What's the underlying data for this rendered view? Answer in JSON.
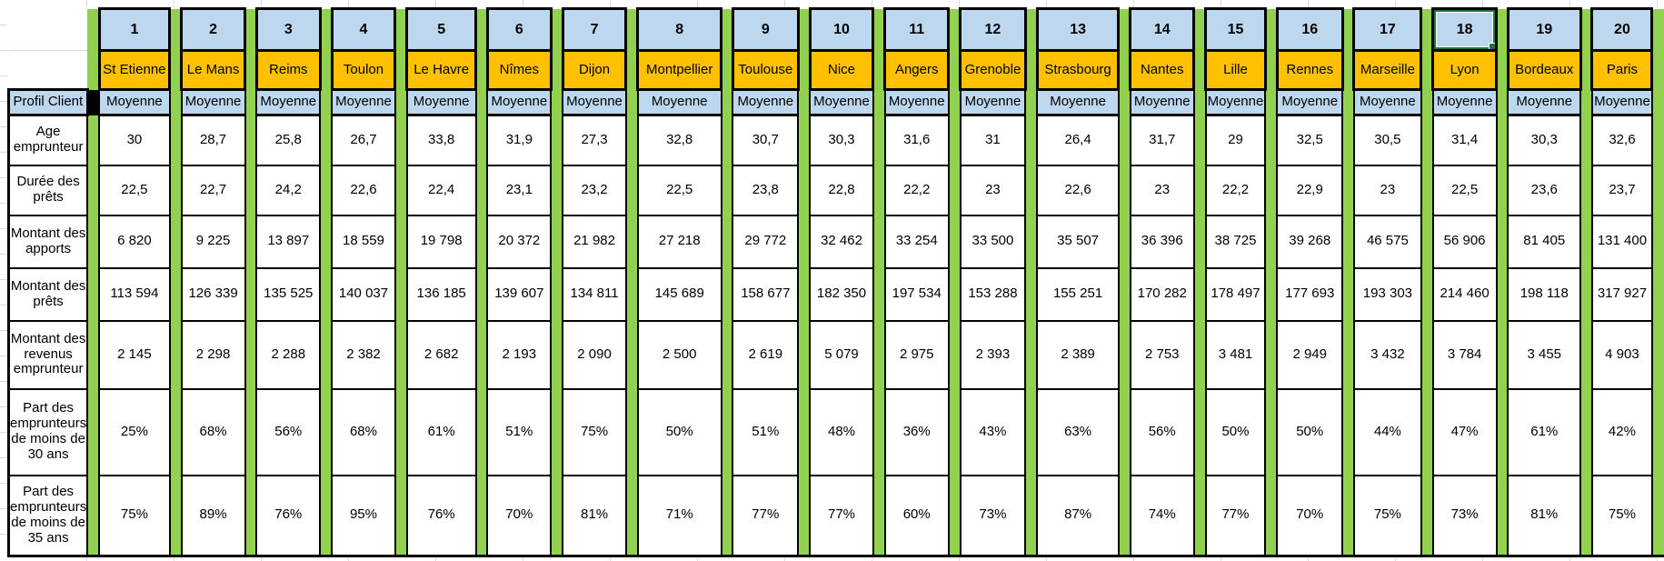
{
  "header": {
    "corner_label": "Profil Client",
    "stat_label": "Moyenne",
    "column_numbers": [
      "1",
      "2",
      "3",
      "4",
      "5",
      "6",
      "7",
      "8",
      "9",
      "10",
      "11",
      "12",
      "13",
      "14",
      "15",
      "16",
      "17",
      "18",
      "19",
      "20"
    ],
    "cities": [
      "St Etienne",
      "Le Mans",
      "Reims",
      "Toulon",
      "Le Havre",
      "Nîmes",
      "Dijon",
      "Montpellier",
      "Toulouse",
      "Nice",
      "Angers",
      "Grenoble",
      "Strasbourg",
      "Nantes",
      "Lille",
      "Rennes",
      "Marseille",
      "Lyon",
      "Bordeaux",
      "Paris"
    ],
    "selected_column_number": "18",
    "selected_city": "Lyon"
  },
  "rows": [
    {
      "label": "Age emprunteur",
      "values": [
        "30",
        "28,7",
        "25,8",
        "26,7",
        "33,8",
        "31,9",
        "27,3",
        "32,8",
        "30,7",
        "30,3",
        "31,6",
        "31",
        "26,4",
        "31,7",
        "29",
        "32,5",
        "30,5",
        "31,4",
        "30,3",
        "32,6"
      ]
    },
    {
      "label": "Durée des prêts",
      "values": [
        "22,5",
        "22,7",
        "24,2",
        "22,6",
        "22,4",
        "23,1",
        "23,2",
        "22,5",
        "23,8",
        "22,8",
        "22,2",
        "23",
        "22,6",
        "23",
        "22,2",
        "22,9",
        "23",
        "22,5",
        "23,6",
        "23,7"
      ]
    },
    {
      "label": "Montant des apports",
      "values": [
        "6 820",
        "9 225",
        "13 897",
        "18 559",
        "19 798",
        "20 372",
        "21 982",
        "27 218",
        "29 772",
        "32 462",
        "33 254",
        "33 500",
        "35 507",
        "36 396",
        "38 725",
        "39 268",
        "46 575",
        "56 906",
        "81 405",
        "131 400"
      ]
    },
    {
      "label": "Montant des prêts",
      "values": [
        "113 594",
        "126 339",
        "135 525",
        "140 037",
        "136 185",
        "139 607",
        "134 811",
        "145 689",
        "158 677",
        "182 350",
        "197 534",
        "153 288",
        "155 251",
        "170 282",
        "178 497",
        "177 693",
        "193 303",
        "214 460",
        "198 118",
        "317 927"
      ]
    },
    {
      "label": "Montant des revenus emprunteur",
      "values": [
        "2 145",
        "2 298",
        "2 288",
        "2 382",
        "2 682",
        "2 193",
        "2 090",
        "2 500",
        "2 619",
        "5 079",
        "2 975",
        "2 393",
        "2 389",
        "2 753",
        "3 481",
        "2 949",
        "3 432",
        "3 784",
        "3 455",
        "4 903"
      ]
    },
    {
      "label": "Part des emprunteurs de moins de 30 ans",
      "values": [
        "25%",
        "68%",
        "56%",
        "68%",
        "61%",
        "51%",
        "75%",
        "50%",
        "51%",
        "48%",
        "36%",
        "43%",
        "63%",
        "56%",
        "50%",
        "50%",
        "44%",
        "47%",
        "61%",
        "42%"
      ]
    },
    {
      "label": "Part des emprunteurs de moins de 35 ans",
      "values": [
        "75%",
        "89%",
        "76%",
        "95%",
        "76%",
        "70%",
        "81%",
        "71%",
        "77%",
        "77%",
        "60%",
        "73%",
        "87%",
        "74%",
        "77%",
        "70%",
        "75%",
        "73%",
        "81%",
        "75%"
      ]
    }
  ],
  "colors": {
    "header_blue": "#BDD7EE",
    "city_orange": "#FFC000",
    "spacer_green": "#92D050",
    "selection_green": "#217346",
    "border_black": "#000000",
    "gridline_gray": "#D9D9D9"
  }
}
